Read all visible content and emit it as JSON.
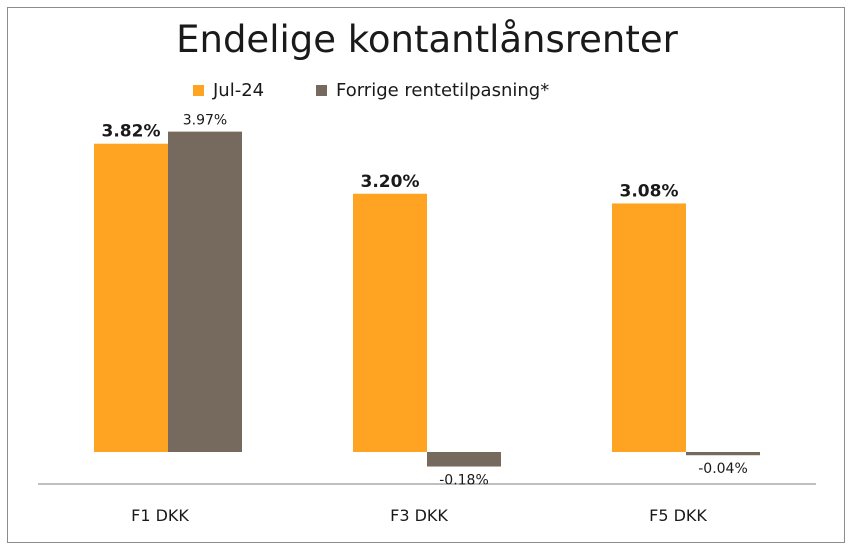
{
  "chart_data": {
    "type": "bar",
    "title": "Endelige kontantlånsrenter",
    "categories": [
      "F1 DKK",
      "F3 DKK",
      "F5 DKK"
    ],
    "series": [
      {
        "name": "Jul-24",
        "values": [
          3.82,
          3.2,
          3.08
        ],
        "labels": [
          "3.82%",
          "3.20%",
          "3.08%"
        ],
        "color": "#FFA322"
      },
      {
        "name": "Forrige rentetilpasning*",
        "values": [
          3.97,
          -0.18,
          -0.04
        ],
        "labels": [
          "3.97%",
          "-0.18%",
          "-0.04%"
        ],
        "color": "#76695D"
      }
    ],
    "xlabel": "",
    "ylabel": "",
    "ylim": [
      -0.4,
      4.4
    ],
    "grid": false,
    "legend": "top"
  },
  "colors": {
    "axis": "#7f7f7f",
    "text": "#1a1a1a"
  }
}
